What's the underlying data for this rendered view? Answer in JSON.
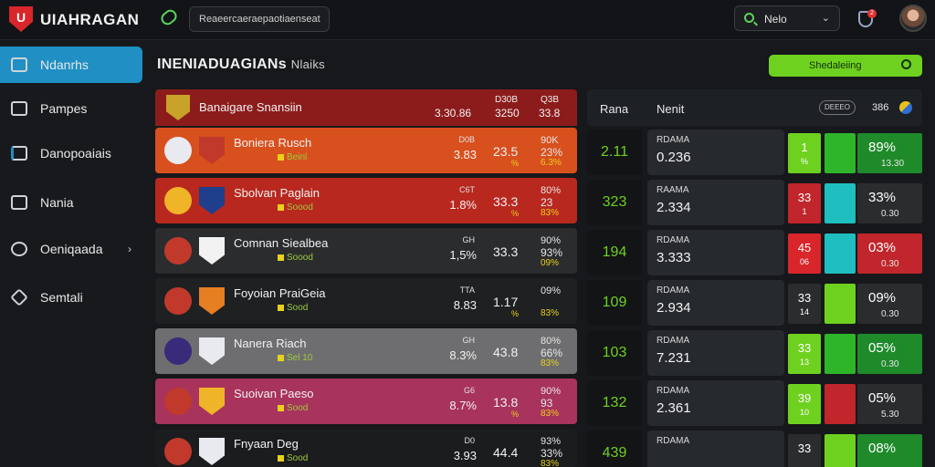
{
  "header": {
    "app_title": "UIAHRAGAN",
    "search_text": "Reaeercaeraepaotiaenseat",
    "select_value": "Nelo",
    "notification_count": "2"
  },
  "sidebar": {
    "items": [
      {
        "label": "Ndanrhs",
        "active": true
      },
      {
        "label": "Pampes"
      },
      {
        "label": "Danopoaiais"
      },
      {
        "label": "Nania"
      },
      {
        "label": "Oeniqaada",
        "has_chevron": true
      },
      {
        "label": "Semtali"
      }
    ]
  },
  "main": {
    "title": "INENIADUAGIANs",
    "title_suffix": "Nlaiks",
    "action_label": "Shedaleiing",
    "left_table": {
      "header": {
        "title": "Banaigare Snansiin",
        "colA": "3.30.86",
        "colB_top": "D30B",
        "colB": "3250",
        "colC_top": "Q3B",
        "colC": "33.8"
      },
      "rows": [
        {
          "team": "Boniera",
          "team2": "Rusch",
          "sub": "Beinl",
          "c1a": "D0B",
          "c1b": "3.83",
          "c2": "23.5",
          "c2s": "%",
          "c3a": "90K",
          "c3b": "23%",
          "c3c": "6.3%",
          "bg": "#d8501e",
          "b1": "#e8eaf0",
          "b2": "#c0392b"
        },
        {
          "team": "Sbolvan",
          "team2": "Paglain",
          "sub": "Soood",
          "c1a": "C6T",
          "c1b": "1.8%",
          "c2": "33.3",
          "c2s": "%",
          "c3a": "80%",
          "c3b": "23",
          "c3c": "83%",
          "bg": "#b8281f",
          "b1": "#f0b429",
          "b2": "#1f3f8c"
        },
        {
          "team": "Comnan",
          "team2": "Siealbea",
          "sub": "Soood",
          "c1a": "GH",
          "c1b": "1,5%",
          "c2": "33.3",
          "c2s": "",
          "c3a": "90%",
          "c3b": "93%",
          "c3c": "09%",
          "bg": "#2a2c2e",
          "b1": "#c0392b",
          "b2": "#f2f2f2"
        },
        {
          "team": "Foyoian",
          "team2": "PraiGeia",
          "sub": "Sood",
          "c1a": "TTA",
          "c1b": "8.83",
          "c2": "1.17",
          "c2s": "%",
          "c3a": "09%",
          "c3b": "",
          "c3c": "83%",
          "bg": "#1e2022",
          "b1": "#c0392b",
          "b2": "#e67e22"
        },
        {
          "team": "Nanera",
          "team2": "Riach",
          "sub": "Sel 10",
          "c1a": "GH",
          "c1b": "8.3%",
          "c2": "43.8",
          "c2s": "",
          "c3a": "80%",
          "c3b": "66%",
          "c3c": "83%",
          "bg": "#6e6e70",
          "b1": "#3a2a7a",
          "b2": "#e8eaf0"
        },
        {
          "team": "Suoivan",
          "team2": "Paeso",
          "sub": "Sood",
          "c1a": "G6",
          "c1b": "8.7%",
          "c2": "13.8",
          "c2s": "%",
          "c3a": "90%",
          "c3b": "93",
          "c3c": "83%",
          "bg": "#a8335c",
          "b1": "#c0392b",
          "b2": "#f0b429"
        },
        {
          "team": "Fnyaan",
          "team2": "Deg",
          "sub": "Sood",
          "c1a": "D0",
          "c1b": "3.93",
          "c2": "44.4",
          "c2s": "",
          "c3a": "93%",
          "c3b": "33%",
          "c3c": "83%",
          "bg": "#1a1c1e",
          "b1": "#c0392b",
          "b2": "#e8eaf0"
        }
      ]
    },
    "right_table": {
      "header": {
        "col1": "Rana",
        "col2": "Nenit",
        "pill": "DEEEO",
        "col3": "386"
      },
      "rows": [
        {
          "num": "2.11",
          "m1": "RDAMA",
          "m2": "0.236",
          "a1": "1",
          "a2": "%",
          "p1": "89%",
          "p2": "13.30",
          "colA": "#6ed11f",
          "colB": "#2fb52a",
          "colC": "#1e8a2a"
        },
        {
          "num": "323",
          "m1": "RAAMA",
          "m2": "2.334",
          "a1": "33",
          "a2": "1",
          "p1": "33%",
          "p2": "0.30",
          "colA": "#c0262b",
          "colB": "#1fbfbf",
          "colC": "#2a2c2e"
        },
        {
          "num": "194",
          "m1": "RDAMA",
          "m2": "3.333",
          "a1": "45",
          "a2": "06",
          "p1": "03%",
          "p2": "0.30",
          "colA": "#d8262b",
          "colB": "#1fbfbf",
          "colC": "#c0262b"
        },
        {
          "num": "109",
          "m1": "RDAMA",
          "m2": "2.934",
          "a1": "33",
          "a2": "14",
          "p1": "09%",
          "p2": "0.30",
          "colA": "#2a2c2e",
          "colB": "#6ed11f",
          "colC": "#2a2c2e"
        },
        {
          "num": "103",
          "m1": "RDAMA",
          "m2": "7.231",
          "a1": "33",
          "a2": "13",
          "p1": "05%",
          "p2": "0.30",
          "colA": "#6ed11f",
          "colB": "#2fb52a",
          "colC": "#1e8a2a"
        },
        {
          "num": "132",
          "m1": "RDAMA",
          "m2": "2.361",
          "a1": "39",
          "a2": "10",
          "p1": "05%",
          "p2": "5.30",
          "colA": "#6ed11f",
          "colB": "#c0262b",
          "colC": "#2a2c2e"
        },
        {
          "num": "439",
          "m1": "RDAMA",
          "m2": "",
          "a1": "33",
          "a2": "",
          "p1": "08%",
          "p2": "",
          "colA": "#2a2c2e",
          "colB": "#6ed11f",
          "colC": "#1e8a2a"
        }
      ]
    }
  }
}
